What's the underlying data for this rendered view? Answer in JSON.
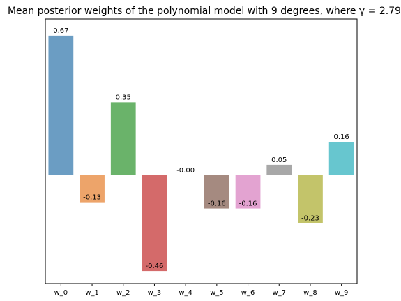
{
  "chart_data": {
    "type": "bar",
    "title": "Mean posterior weights of the polynomial model with 9 degrees, where γ = 2.79",
    "categories": [
      "w_0",
      "w_1",
      "w_2",
      "w_3",
      "w_4",
      "w_5",
      "w_6",
      "w_7",
      "w_8",
      "w_9"
    ],
    "values": [
      0.67,
      -0.13,
      0.35,
      -0.46,
      -0.0,
      -0.16,
      -0.16,
      0.05,
      -0.23,
      0.16
    ],
    "value_labels": [
      "0.67",
      "-0.13",
      "0.35",
      "-0.46",
      "-0.00",
      "-0.16",
      "-0.16",
      "0.05",
      "-0.23",
      "0.16"
    ],
    "colors": [
      "#6b9dc3",
      "#eda46a",
      "#6ab36a",
      "#d46a6a",
      "#a988c9",
      "#a58a80",
      "#e3a3d1",
      "#a8a8a8",
      "#c3c46a",
      "#67c6cf"
    ],
    "xlabel": "",
    "ylabel": "",
    "ylim": [
      -0.52,
      0.75
    ],
    "grid": false,
    "y_ticks_visible": false
  }
}
